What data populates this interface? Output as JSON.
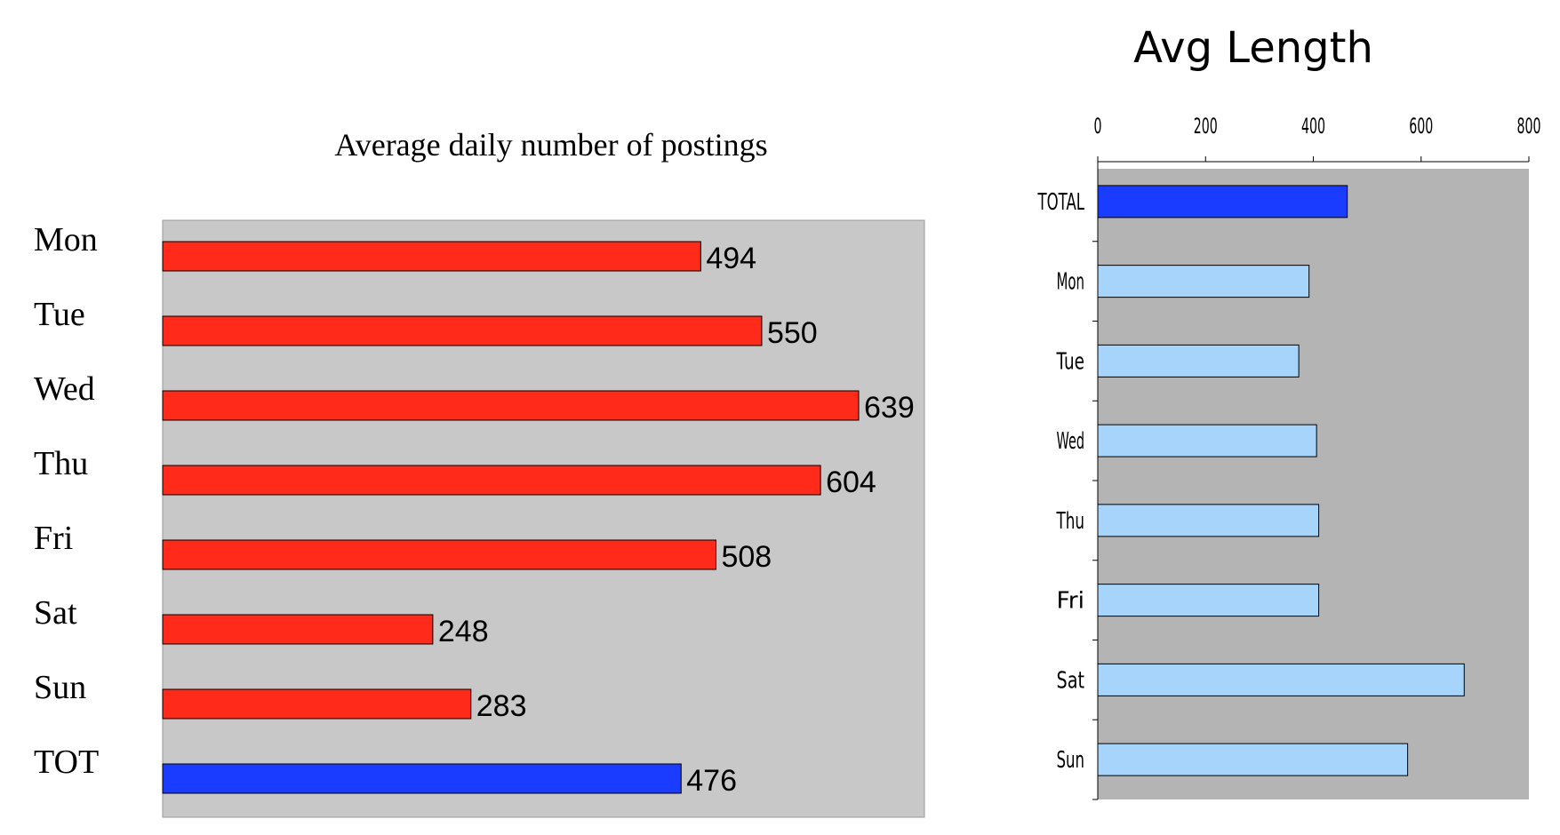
{
  "chart_data": [
    {
      "type": "bar",
      "orientation": "horizontal",
      "title": "Average daily number of postings",
      "categories": [
        "Mon",
        "Tue",
        "Wed",
        "Thu",
        "Fri",
        "Sat",
        "Sun",
        "TOT"
      ],
      "values": [
        494,
        550,
        639,
        604,
        508,
        248,
        283,
        476
      ],
      "data_labels": [
        "494",
        "550",
        "639",
        "604",
        "508",
        "248",
        "283",
        "476"
      ],
      "xlim": [
        0,
        700
      ],
      "grid": false,
      "colors": {
        "bar": "#ff2a1a",
        "highlight_bar": "#1a3cff",
        "plot_background": "#c8c8c8"
      }
    },
    {
      "type": "bar",
      "orientation": "horizontal",
      "title": "Avg Length",
      "categories": [
        "TOTAL",
        "Mon",
        "Tue",
        "Wed",
        "Thu",
        "Fri",
        "Sat",
        "Sun"
      ],
      "values": [
        463,
        392,
        373,
        406,
        410,
        410,
        680,
        575
      ],
      "x_ticks": [
        "0",
        "200",
        "400",
        "600",
        "800"
      ],
      "xlim": [
        0,
        800
      ],
      "x_axis_position": "top",
      "grid": false,
      "colors": {
        "bar": "#a6d4fa",
        "highlight_bar": "#1a3cff",
        "plot_background": "#b4b4b4"
      }
    }
  ]
}
